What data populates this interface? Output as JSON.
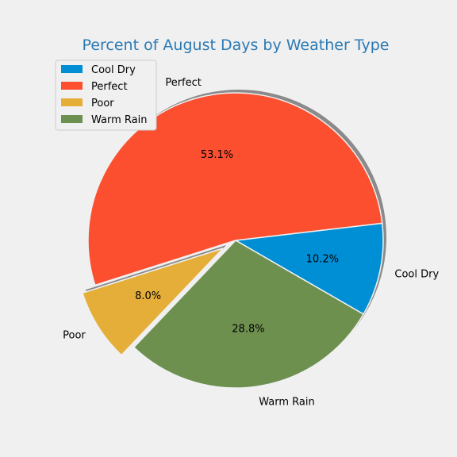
{
  "chart_data": {
    "type": "pie",
    "title": "Percent of August Days by Weather Type",
    "title_color": "#2a7ab5",
    "start_angle_deg": -30,
    "direction": "counterclockwise",
    "shadow": true,
    "legend_position": "upper-left",
    "slices": [
      {
        "label": "Cool Dry",
        "value": 10.2,
        "pct_label": "10.2%",
        "color": "#008fd5",
        "explode": 0
      },
      {
        "label": "Perfect",
        "value": 53.1,
        "pct_label": "53.1%",
        "color": "#fc4f30",
        "explode": 0
      },
      {
        "label": "Poor",
        "value": 8.0,
        "pct_label": "8.0%",
        "color": "#e5ae38",
        "explode": 0.1
      },
      {
        "label": "Warm Rain",
        "value": 28.8,
        "pct_label": "28.8%",
        "color": "#6d904f",
        "explode": 0
      }
    ]
  }
}
